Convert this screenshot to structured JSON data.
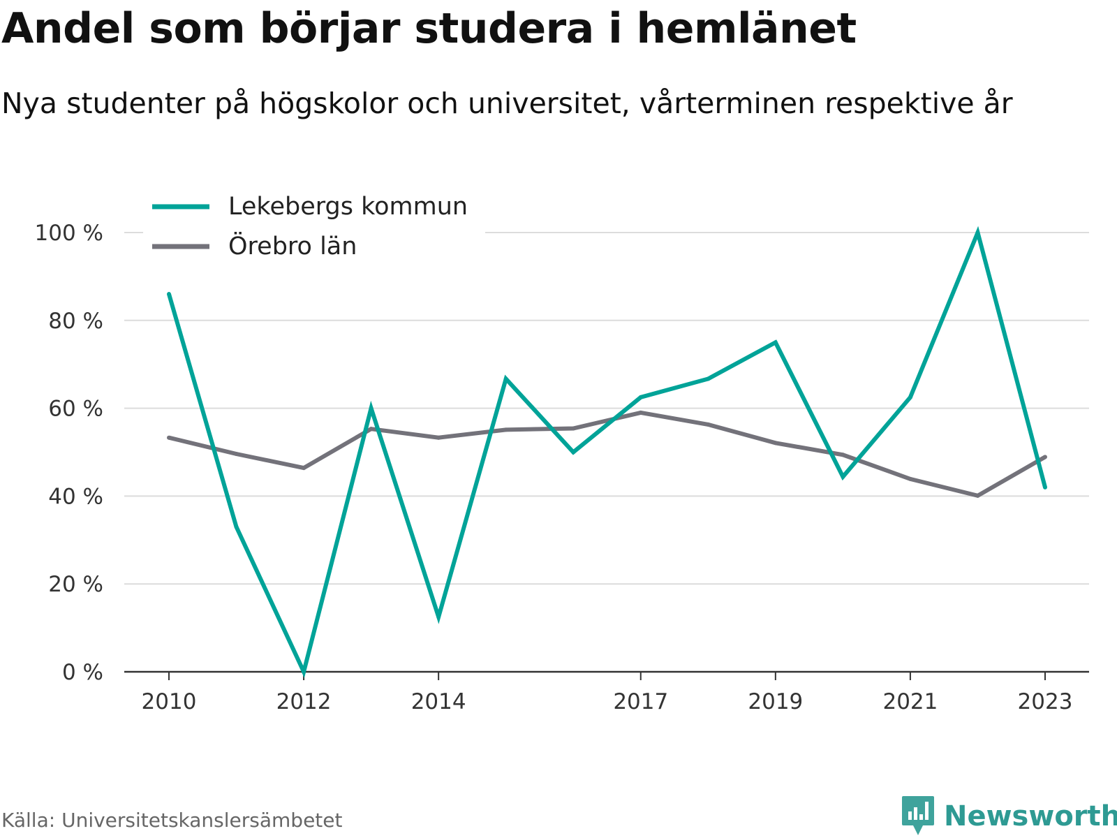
{
  "title": "Andel som börjar studera i hemlänet",
  "subtitle": "Nya studenter på högskolor och universitet, vårterminen respektive år",
  "source": "Källa: Universitetskanslersämbetet",
  "brand": {
    "name": "Newsworthy",
    "icon": "newsworthy-logo-icon",
    "color": "#2e9a93"
  },
  "chart_data": {
    "type": "line",
    "x": [
      2010,
      2011,
      2012,
      2013,
      2014,
      2015,
      2016,
      2017,
      2018,
      2019,
      2020,
      2021,
      2022,
      2023
    ],
    "x_tick_labels": [
      "2010",
      "2012",
      "2014",
      "2017",
      "2019",
      "2021",
      "2023"
    ],
    "y_tick_labels": [
      "0 %",
      "20 %",
      "40 %",
      "60 %",
      "80 %",
      "100 %"
    ],
    "ylim": [
      0,
      100
    ],
    "grid": true,
    "legend_position": "top-left",
    "series": [
      {
        "name": "Lekebergs kommun",
        "color": "#00a398",
        "values": [
          86,
          33,
          0,
          60,
          12.5,
          66.7,
          50,
          62.5,
          66.7,
          75,
          44.4,
          62.5,
          100,
          42
        ]
      },
      {
        "name": "Örebro län",
        "color": "#73727a",
        "values": [
          53.3,
          49.6,
          46.4,
          55.3,
          53.3,
          55.1,
          55.4,
          59,
          56.3,
          52.1,
          49.4,
          43.9,
          40.1,
          48.9
        ]
      }
    ]
  }
}
